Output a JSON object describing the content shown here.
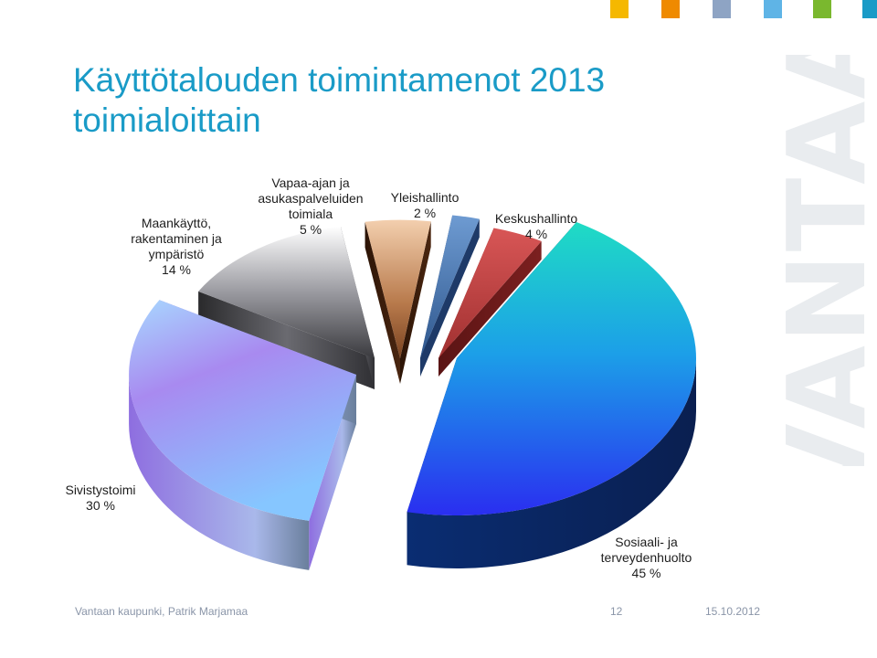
{
  "title_lines": [
    "Käyttötalouden toimintamenot 2013",
    "toimialoittain"
  ],
  "watermark": "VANTAA",
  "corner_squares": [
    "#f5b800",
    "#ef8a00",
    "#8ea4c4",
    "#5fb4e6",
    "#7ab82e",
    "#1a9bc7"
  ],
  "labels": {
    "maankaytto": [
      "Maankäyttö,",
      "rakentaminen ja",
      "ympäristö",
      "14 %"
    ],
    "vapaa": [
      "Vapaa-ajan ja",
      "asukaspalveluiden",
      "toimiala",
      "5 %"
    ],
    "yleis": [
      "Yleishallinto",
      "2 %"
    ],
    "keskus": [
      "Keskushallinto",
      "4 %"
    ],
    "sivistys": [
      "Sivistystoimi",
      "30 %"
    ],
    "sosiaali": [
      "Sosiaali- ja",
      "terveydenhuolto",
      "45 %"
    ]
  },
  "chart_data": {
    "type": "pie",
    "style": "3d-exploded",
    "title": "Käyttötalouden toimintamenot 2013 toimialoittain",
    "categories": [
      "Sosiaali- ja terveydenhuolto",
      "Sivistystoimi",
      "Maankäyttö, rakentaminen ja ympäristö",
      "Vapaa-ajan ja asukaspalveluiden toimiala",
      "Yleishallinto",
      "Keskushallinto"
    ],
    "values": [
      45,
      30,
      14,
      5,
      2,
      4
    ],
    "colors": [
      "#1f6fe0",
      "#9f8ff0",
      "#8a8a92",
      "#a8683a",
      "#4a78b0",
      "#c84848"
    ]
  },
  "footer": {
    "author": "Vantaan kaupunki, Patrik Marjamaa",
    "page": "12",
    "date": "15.10.2012"
  }
}
